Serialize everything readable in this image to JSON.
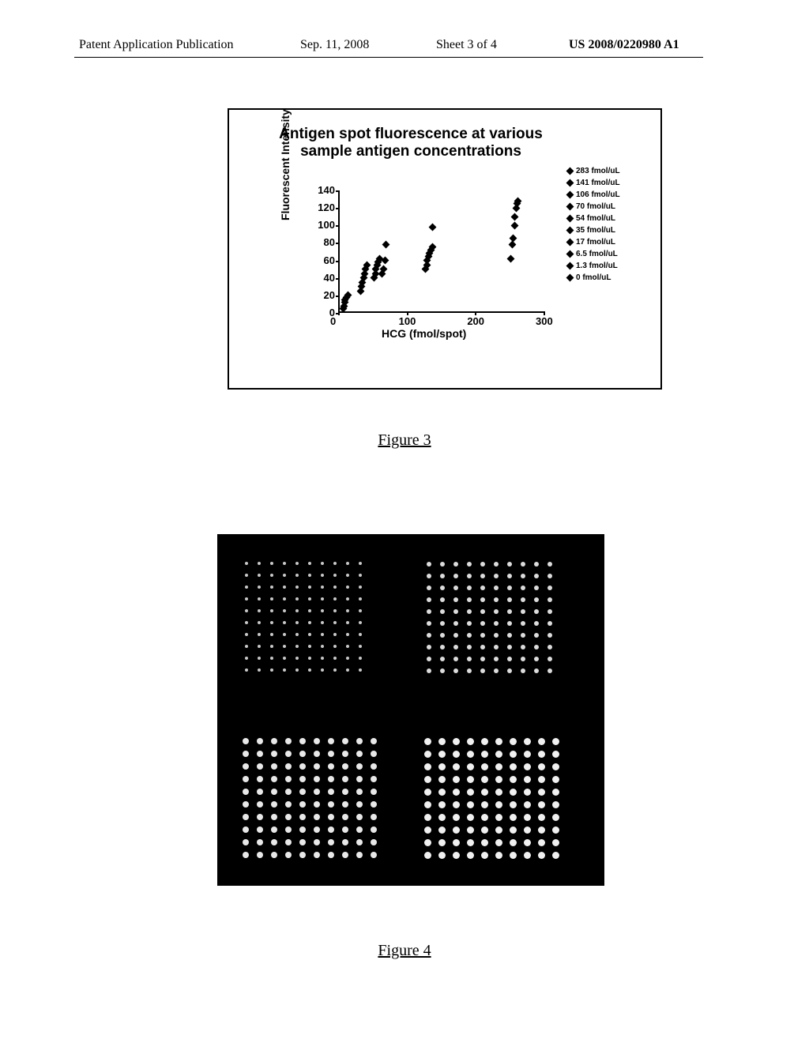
{
  "header": {
    "left": "Patent Application Publication",
    "date": "Sep. 11, 2008",
    "sheet": "Sheet 3 of 4",
    "pubno": "US 2008/0220980 A1"
  },
  "figure3": {
    "caption": "Figure 3",
    "chart": {
      "type": "scatter",
      "title_line1": "Antigen spot fluorescence at various",
      "title_line2": "sample antigen concentrations",
      "ylabel": "Fluorescent Intensity",
      "xlabel": "HCG (fmol/spot)",
      "title_fontsize": 19,
      "label_fontsize": 14,
      "tick_fontsize": 13,
      "xlim": [
        0,
        300
      ],
      "ylim": [
        0,
        140
      ],
      "xticks": [
        0,
        100,
        200,
        300
      ],
      "yticks": [
        0,
        20,
        40,
        60,
        80,
        100,
        120,
        140
      ],
      "marker": "diamond",
      "marker_color": "#000000",
      "axis_color": "#000000",
      "background_color": "#ffffff",
      "points": [
        {
          "x": 5,
          "y": 5
        },
        {
          "x": 6,
          "y": 8
        },
        {
          "x": 7,
          "y": 12
        },
        {
          "x": 8,
          "y": 15
        },
        {
          "x": 10,
          "y": 18
        },
        {
          "x": 12,
          "y": 20
        },
        {
          "x": 30,
          "y": 25
        },
        {
          "x": 32,
          "y": 30
        },
        {
          "x": 33,
          "y": 35
        },
        {
          "x": 35,
          "y": 40
        },
        {
          "x": 36,
          "y": 45
        },
        {
          "x": 38,
          "y": 50
        },
        {
          "x": 40,
          "y": 55
        },
        {
          "x": 50,
          "y": 40
        },
        {
          "x": 52,
          "y": 45
        },
        {
          "x": 53,
          "y": 50
        },
        {
          "x": 55,
          "y": 55
        },
        {
          "x": 56,
          "y": 58
        },
        {
          "x": 58,
          "y": 62
        },
        {
          "x": 62,
          "y": 45
        },
        {
          "x": 64,
          "y": 50
        },
        {
          "x": 66,
          "y": 60
        },
        {
          "x": 68,
          "y": 78
        },
        {
          "x": 125,
          "y": 50
        },
        {
          "x": 127,
          "y": 55
        },
        {
          "x": 128,
          "y": 60
        },
        {
          "x": 130,
          "y": 65
        },
        {
          "x": 131,
          "y": 68
        },
        {
          "x": 133,
          "y": 72
        },
        {
          "x": 135,
          "y": 75
        },
        {
          "x": 136,
          "y": 98
        },
        {
          "x": 250,
          "y": 62
        },
        {
          "x": 252,
          "y": 78
        },
        {
          "x": 253,
          "y": 85
        },
        {
          "x": 255,
          "y": 100
        },
        {
          "x": 256,
          "y": 110
        },
        {
          "x": 258,
          "y": 120
        },
        {
          "x": 259,
          "y": 125
        },
        {
          "x": 260,
          "y": 128
        }
      ],
      "legend_items": [
        "283 fmol/uL",
        "141 fmol/uL",
        "106 fmol/uL",
        "70 fmol/uL",
        "54 fmol/uL",
        "35 fmol/uL",
        "17 fmol/uL",
        "6.5 fmol/uL",
        "1.3 fmol/uL",
        "0 fmol/uL"
      ]
    }
  },
  "figure4": {
    "caption": "Figure 4",
    "microarray": {
      "background_color": "#000000",
      "panels": [
        {
          "id": "top-left",
          "rows": 10,
          "cols": 10,
          "spot_size": "sm",
          "spot_color": "#c8c8c8",
          "col_gap": 16,
          "row_gap": 15
        },
        {
          "id": "top-right",
          "rows": 10,
          "cols": 10,
          "spot_size": "md",
          "spot_color": "#dcdcdc",
          "col_gap": 17,
          "row_gap": 15
        },
        {
          "id": "bottom-left",
          "rows": 10,
          "cols": 10,
          "spot_size": "lg",
          "spot_color": "#e8e8e8",
          "col_gap": 18,
          "row_gap": 16
        },
        {
          "id": "bottom-right",
          "rows": 10,
          "cols": 10,
          "spot_size": "xl",
          "spot_color": "#f0f0f0",
          "col_gap": 18,
          "row_gap": 16
        }
      ]
    }
  }
}
